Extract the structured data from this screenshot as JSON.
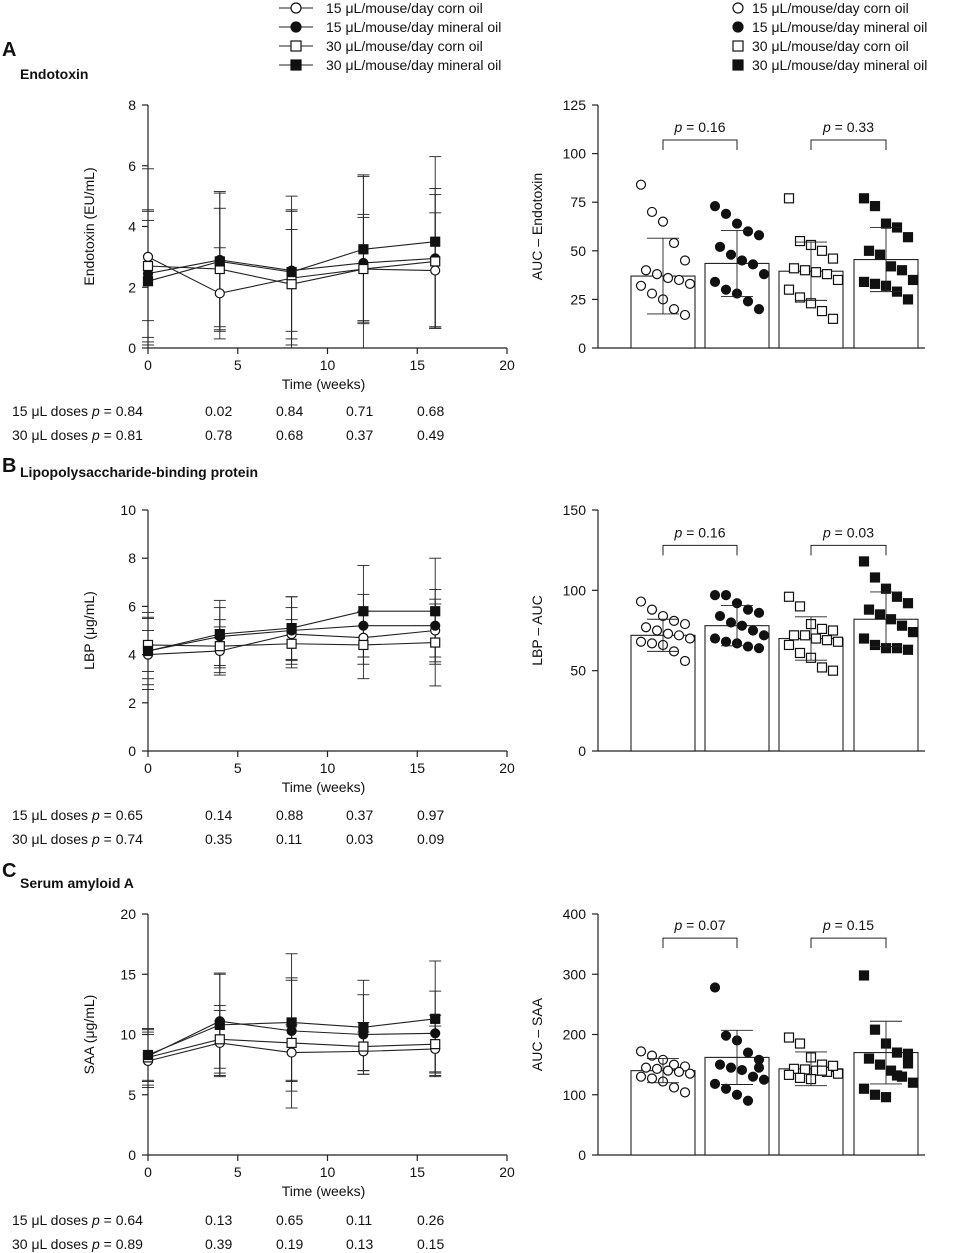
{
  "legend_left": [
    {
      "label": "15 μL/mouse/day corn oil",
      "marker": "circle-open"
    },
    {
      "label": "15 μL/mouse/day mineral oil",
      "marker": "circle-filled"
    },
    {
      "label": "30 μL/mouse/day corn oil",
      "marker": "square-open"
    },
    {
      "label": "30 μL/mouse/day mineral oil",
      "marker": "square-filled"
    }
  ],
  "legend_right": [
    {
      "label": "15 μL/mouse/day corn oil",
      "marker": "circle-open"
    },
    {
      "label": "15 μL/mouse/day mineral oil",
      "marker": "circle-filled"
    },
    {
      "label": "30 μL/mouse/day corn oil",
      "marker": "square-open"
    },
    {
      "label": "30 μL/mouse/day mineral oil",
      "marker": "square-filled"
    }
  ],
  "panels": [
    {
      "letter": "A",
      "title": "Endotoxin",
      "p_rows": [
        {
          "label": "15 μL doses",
          "p_first": "p = 0.84",
          "values": [
            "0.02",
            "0.84",
            "0.71",
            "0.68"
          ]
        },
        {
          "label": "30 μL doses",
          "p_first": "p = 0.81",
          "values": [
            "0.78",
            "0.68",
            "0.37",
            "0.49"
          ]
        }
      ]
    },
    {
      "letter": "B",
      "title": "Lipopolysaccharide-binding protein",
      "p_rows": [
        {
          "label": "15 μL doses",
          "p_first": "p = 0.65",
          "values": [
            "0.14",
            "0.88",
            "0.37",
            "0.97"
          ]
        },
        {
          "label": "30 μL doses",
          "p_first": "p = 0.74",
          "values": [
            "0.35",
            "0.11",
            "0.03",
            "0.09"
          ]
        }
      ]
    },
    {
      "letter": "C",
      "title": "Serum amyloid A",
      "p_rows": [
        {
          "label": "15 μL doses",
          "p_first": "p = 0.64",
          "values": [
            "0.13",
            "0.65",
            "0.11",
            "0.26"
          ]
        },
        {
          "label": "30 μL doses",
          "p_first": "p = 0.89",
          "values": [
            "0.39",
            "0.19",
            "0.13",
            "0.15"
          ]
        }
      ]
    }
  ],
  "chart_data": [
    {
      "id": "A-line",
      "type": "line",
      "xlabel": "Time (weeks)",
      "ylabel": "Endotoxin (EU/mL)",
      "xlim": [
        0,
        20
      ],
      "ylim": [
        0,
        8
      ],
      "xticks": [
        0,
        5,
        10,
        15,
        20
      ],
      "yticks": [
        0,
        2,
        4,
        6,
        8
      ],
      "x": [
        0,
        4,
        8,
        12,
        16
      ],
      "series": [
        {
          "name": "15 μL/mouse/day corn oil",
          "marker": "circle-open",
          "values": [
            3.0,
            1.8,
            2.3,
            2.6,
            2.55
          ],
          "err": [
            2.9,
            1.5,
            2.2,
            1.8,
            1.9
          ]
        },
        {
          "name": "15 μL/mouse/day mineral oil",
          "marker": "circle-filled",
          "values": [
            2.45,
            2.9,
            2.55,
            2.8,
            2.95
          ],
          "err": [
            2.1,
            2.2,
            2.0,
            2.9,
            2.3
          ]
        },
        {
          "name": "30 μL/mouse/day corn oil",
          "marker": "square-open",
          "values": [
            2.7,
            2.6,
            2.1,
            2.6,
            2.85
          ],
          "err": [
            1.8,
            2.0,
            1.8,
            1.7,
            2.2
          ]
        },
        {
          "name": "30 μL/mouse/day mineral oil",
          "marker": "square-filled",
          "values": [
            2.2,
            2.85,
            2.5,
            3.25,
            3.5
          ],
          "err": [
            2.0,
            2.3,
            2.5,
            2.4,
            2.8
          ]
        }
      ]
    },
    {
      "id": "A-bar",
      "type": "bar",
      "ylabel": "AUC – Endotoxin",
      "ylim": [
        0,
        125
      ],
      "yticks": [
        0,
        25,
        50,
        75,
        100,
        125
      ],
      "categories": [
        "15 μL/mouse/day corn oil",
        "15 μL/mouse/day mineral oil",
        "30 μL/mouse/day corn oil",
        "30 μL/mouse/day mineral oil"
      ],
      "markers": [
        "circle-open",
        "circle-filled",
        "square-open",
        "square-filled"
      ],
      "values": [
        37,
        43.5,
        39.5,
        45.5
      ],
      "err": [
        19.5,
        17,
        15,
        16.5
      ],
      "points": [
        [
          84,
          70,
          65,
          54,
          45,
          40,
          38,
          36,
          35,
          33,
          32,
          28,
          25,
          20,
          17
        ],
        [
          73,
          69,
          64,
          60,
          58,
          52,
          48,
          45,
          43,
          38,
          34,
          30,
          28,
          24,
          20
        ],
        [
          77,
          55,
          53,
          50,
          46,
          41,
          40,
          39,
          38,
          35,
          30,
          26,
          23,
          19,
          15
        ],
        [
          77,
          73,
          64,
          62,
          57,
          50,
          48,
          42,
          40,
          35,
          34,
          33,
          32,
          29,
          25
        ]
      ],
      "comparisons": [
        {
          "pair": [
            0,
            1
          ],
          "label": "p = 0.16",
          "y": 107
        },
        {
          "pair": [
            2,
            3
          ],
          "label": "p = 0.33",
          "y": 107
        }
      ]
    },
    {
      "id": "B-line",
      "type": "line",
      "xlabel": "Time (weeks)",
      "ylabel": "LBP (μg/mL)",
      "xlim": [
        0,
        20
      ],
      "ylim": [
        0,
        10
      ],
      "xticks": [
        0,
        5,
        10,
        15,
        20
      ],
      "yticks": [
        0,
        2,
        4,
        6,
        8,
        10
      ],
      "x": [
        0,
        4,
        8,
        12,
        16
      ],
      "series": [
        {
          "name": "15 μL/mouse/day corn oil",
          "marker": "circle-open",
          "values": [
            4.0,
            4.15,
            4.85,
            4.7,
            5.0
          ],
          "err": [
            1.0,
            1.0,
            1.1,
            1.1,
            1.1
          ]
        },
        {
          "name": "15 μL/mouse/day mineral oil",
          "marker": "circle-filled",
          "values": [
            4.15,
            4.75,
            5.0,
            5.2,
            5.2
          ],
          "err": [
            1.4,
            1.2,
            1.4,
            1.3,
            1.5
          ]
        },
        {
          "name": "30 μL/mouse/day corn oil",
          "marker": "square-open",
          "values": [
            4.4,
            4.35,
            4.45,
            4.4,
            4.5
          ],
          "err": [
            1.1,
            1.1,
            1.0,
            1.4,
            1.8
          ]
        },
        {
          "name": "30 μL/mouse/day mineral oil",
          "marker": "square-filled",
          "values": [
            4.15,
            4.85,
            5.1,
            5.8,
            5.8
          ],
          "err": [
            1.6,
            1.4,
            1.3,
            1.9,
            2.2
          ]
        }
      ]
    },
    {
      "id": "B-bar",
      "type": "bar",
      "ylabel": "LBP – AUC",
      "ylim": [
        0,
        150
      ],
      "yticks": [
        0,
        50,
        100,
        150
      ],
      "categories": [
        "15 μL/mouse/day corn oil",
        "15 μL/mouse/day mineral oil",
        "30 μL/mouse/day corn oil",
        "30 μL/mouse/day mineral oil"
      ],
      "markers": [
        "circle-open",
        "circle-filled",
        "square-open",
        "square-filled"
      ],
      "values": [
        72,
        78,
        70,
        82
      ],
      "err": [
        10,
        12.5,
        13.5,
        17
      ],
      "points": [
        [
          93,
          88,
          84,
          81,
          79,
          77,
          75,
          73,
          72,
          70,
          68,
          67,
          66,
          62,
          56
        ],
        [
          97,
          97,
          92,
          88,
          86,
          84,
          80,
          78,
          75,
          72,
          70,
          68,
          67,
          65,
          64
        ],
        [
          96,
          90,
          79,
          76,
          75,
          72,
          72,
          70,
          69,
          68,
          66,
          61,
          58,
          52,
          50
        ],
        [
          118,
          108,
          101,
          96,
          92,
          88,
          85,
          82,
          78,
          74,
          70,
          66,
          64,
          64,
          63
        ]
      ],
      "comparisons": [
        {
          "pair": [
            0,
            1
          ],
          "label": "p = 0.16",
          "y": 128
        },
        {
          "pair": [
            2,
            3
          ],
          "label": "p = 0.03",
          "y": 128
        }
      ]
    },
    {
      "id": "C-line",
      "type": "line",
      "xlabel": "Time (weeks)",
      "ylabel": "SAA (μg/mL)",
      "xlim": [
        0,
        20
      ],
      "ylim": [
        0,
        20
      ],
      "xticks": [
        0,
        5,
        10,
        15,
        20
      ],
      "yticks": [
        0,
        5,
        10,
        15,
        20
      ],
      "x": [
        0,
        4,
        8,
        12,
        16
      ],
      "series": [
        {
          "name": "15 μL/mouse/day corn oil",
          "marker": "circle-open",
          "values": [
            7.8,
            9.3,
            8.5,
            8.6,
            8.8
          ],
          "err": [
            2.2,
            2.7,
            2.3,
            1.6,
            1.9
          ]
        },
        {
          "name": "15 μL/mouse/day mineral oil",
          "marker": "circle-filled",
          "values": [
            8.2,
            11.1,
            10.3,
            10.0,
            10.1
          ],
          "err": [
            2.0,
            3.9,
            4.2,
            3.3,
            3.5
          ]
        },
        {
          "name": "30 μL/mouse/day corn oil",
          "marker": "square-open",
          "values": [
            8.1,
            9.6,
            9.3,
            9.0,
            9.2
          ],
          "err": [
            2.3,
            2.8,
            5.4,
            2.0,
            2.4
          ]
        },
        {
          "name": "30 μL/mouse/day mineral oil",
          "marker": "square-filled",
          "values": [
            8.3,
            10.8,
            11.0,
            10.6,
            11.3
          ],
          "err": [
            2.2,
            4.3,
            5.7,
            3.9,
            4.8
          ]
        }
      ]
    },
    {
      "id": "C-bar",
      "type": "bar",
      "ylabel": "AUC – SAA",
      "ylim": [
        0,
        400
      ],
      "yticks": [
        0,
        100,
        200,
        300,
        400
      ],
      "categories": [
        "15 μL/mouse/day corn oil",
        "15 μL/mouse/day mineral oil",
        "30 μL/mouse/day corn oil",
        "30 μL/mouse/day mineral oil"
      ],
      "markers": [
        "circle-open",
        "circle-filled",
        "square-open",
        "square-filled"
      ],
      "values": [
        140,
        162,
        143,
        170
      ],
      "err": [
        20,
        45,
        28,
        52
      ],
      "points": [
        [
          172,
          165,
          158,
          150,
          147,
          145,
          143,
          140,
          138,
          135,
          130,
          127,
          122,
          112,
          104
        ],
        [
          278,
          198,
          190,
          170,
          158,
          150,
          145,
          141,
          130,
          125,
          118,
          110,
          100,
          90,
          145
        ],
        [
          195,
          185,
          162,
          150,
          146,
          143,
          142,
          140,
          138,
          135,
          133,
          128,
          126,
          140,
          148
        ],
        [
          298,
          208,
          185,
          170,
          168,
          160,
          150,
          140,
          130,
          120,
          110,
          100,
          96,
          132,
          152
        ]
      ],
      "comparisons": [
        {
          "pair": [
            0,
            1
          ],
          "label": "p = 0.07",
          "y": 360
        },
        {
          "pair": [
            2,
            3
          ],
          "label": "p = 0.15",
          "y": 360
        }
      ]
    }
  ]
}
